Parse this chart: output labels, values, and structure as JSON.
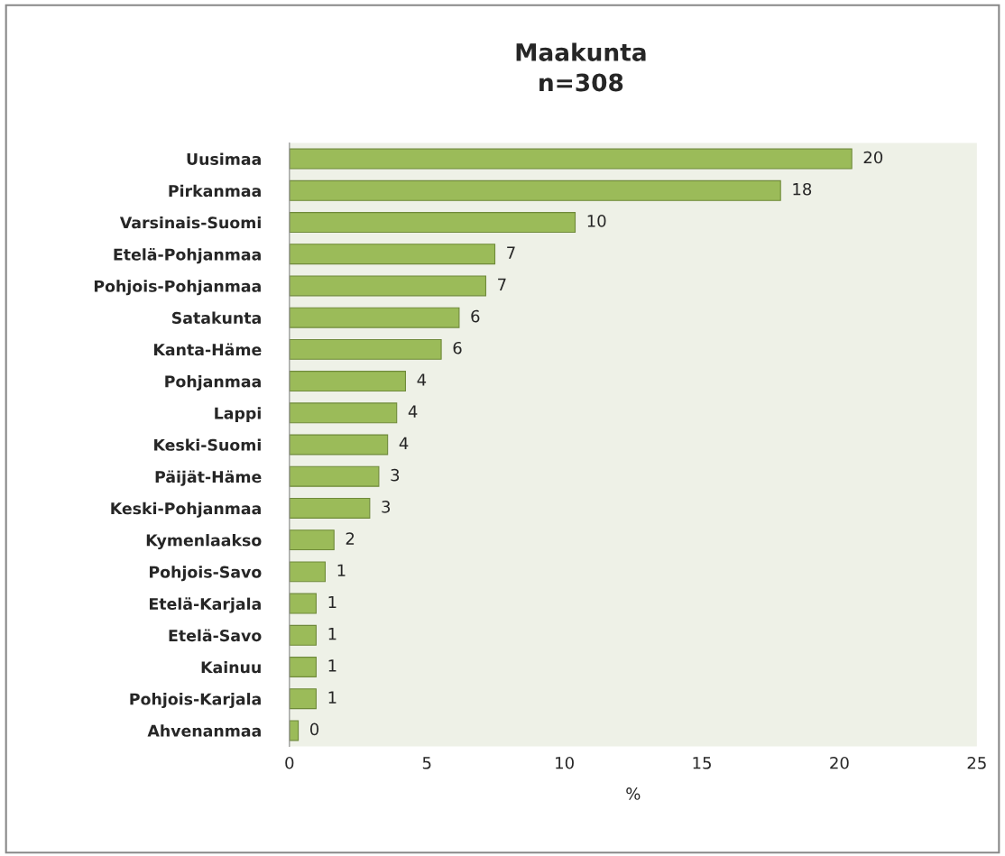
{
  "chart_data": {
    "type": "bar",
    "orientation": "horizontal",
    "title": "Maakunta\nn=308",
    "xlabel": "%",
    "categories": [
      "Uusimaa",
      "Pirkanmaa",
      "Varsinais-Suomi",
      "Etelä-Pohjanmaa",
      "Pohjois-Pohjanmaa",
      "Satakunta",
      "Kanta-Häme",
      "Pohjanmaa",
      "Lappi",
      "Keski-Suomi",
      "Päijät-Häme",
      "Keski-Pohjanmaa",
      "Kymenlaakso",
      "Pohjois-Savo",
      "Etelä-Karjala",
      "Etelä-Savo",
      "Kainuu",
      "Pohjois-Karjala",
      "Ahvenanmaa"
    ],
    "values": [
      20.45,
      17.86,
      10.39,
      7.47,
      7.14,
      6.17,
      5.52,
      4.22,
      3.9,
      3.57,
      3.25,
      2.92,
      1.62,
      1.3,
      0.97,
      0.97,
      0.97,
      0.97,
      0.32
    ],
    "value_labels": [
      "20",
      "18",
      "10",
      "7",
      "7",
      "6",
      "6",
      "4",
      "4",
      "4",
      "3",
      "3",
      "2",
      "1",
      "1",
      "1",
      "1",
      "1",
      "0"
    ],
    "color": "#9bbb59",
    "xlim": [
      0,
      25
    ],
    "xticks": [
      0,
      5,
      10,
      15,
      20,
      25
    ]
  }
}
